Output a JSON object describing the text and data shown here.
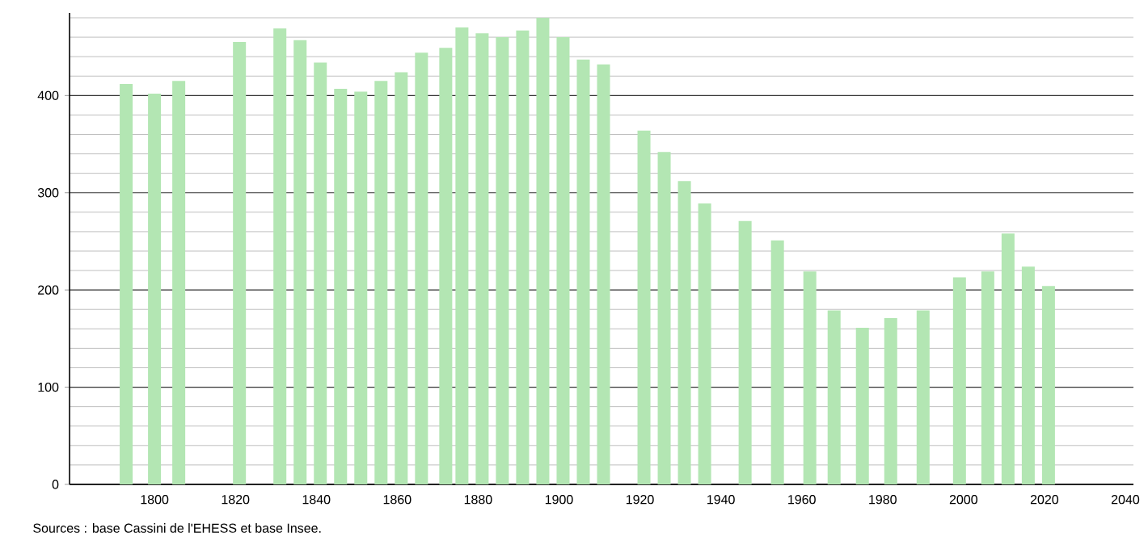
{
  "chart_data": {
    "type": "bar",
    "color": "#b3e6b3",
    "x": [
      1793,
      1800,
      1806,
      1821,
      1831,
      1836,
      1841,
      1846,
      1851,
      1856,
      1861,
      1866,
      1872,
      1876,
      1881,
      1886,
      1891,
      1896,
      1901,
      1906,
      1911,
      1921,
      1926,
      1931,
      1936,
      1946,
      1954,
      1962,
      1968,
      1975,
      1982,
      1990,
      1999,
      2006,
      2011,
      2016,
      2021
    ],
    "values": [
      412,
      402,
      415,
      455,
      469,
      457,
      434,
      407,
      404,
      415,
      424,
      444,
      449,
      470,
      464,
      460,
      467,
      480,
      460,
      437,
      432,
      364,
      342,
      312,
      289,
      271,
      251,
      219,
      179,
      161,
      171,
      179,
      213,
      219,
      258,
      224,
      204
    ],
    "xlim": [
      1779,
      2042
    ],
    "xticks": [
      1800,
      1820,
      1840,
      1860,
      1880,
      1900,
      1920,
      1940,
      1960,
      1980,
      2000,
      2020,
      2040
    ],
    "ylim": [
      0,
      485
    ],
    "yticks": [
      0,
      {
        "value": 20,
        "label": null
      },
      {
        "value": 40,
        "label": null
      },
      {
        "value": 60,
        "label": null
      },
      {
        "value": 80,
        "label": null
      },
      100,
      {
        "value": 120,
        "label": null
      },
      {
        "value": 140,
        "label": null
      },
      {
        "value": 160,
        "label": null
      },
      {
        "value": 180,
        "label": null
      },
      200,
      {
        "value": 220,
        "label": null
      },
      {
        "value": 240,
        "label": null
      },
      {
        "value": 260,
        "label": null
      },
      {
        "value": 280,
        "label": null
      },
      300,
      {
        "value": 320,
        "label": null
      },
      {
        "value": 340,
        "label": null
      },
      {
        "value": 360,
        "label": null
      },
      {
        "value": 380,
        "label": null
      },
      400,
      {
        "value": 420,
        "label": null
      },
      {
        "value": 440,
        "label": null
      },
      {
        "value": 460,
        "label": null
      },
      {
        "value": 480,
        "label": null
      }
    ],
    "grid": "y",
    "annotations": [
      "Sources : base Cassini de l'EHESS et base Insee."
    ]
  }
}
